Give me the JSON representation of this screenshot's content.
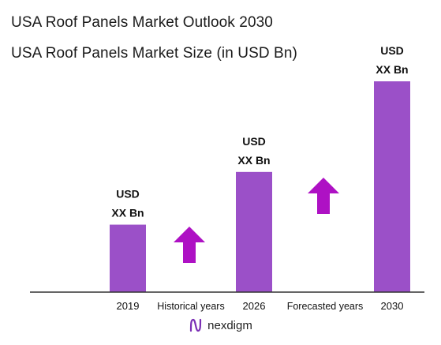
{
  "header": {
    "title": "USA Roof Panels Market Outlook 2030",
    "subtitle": "USA Roof Panels Market Size (in USD Bn)"
  },
  "colors": {
    "bar": "#9b50c8",
    "arrow": "#ae11c4",
    "axis": "#333333"
  },
  "chart_data": {
    "type": "bar",
    "categories": [
      "2019",
      "2026",
      "2030"
    ],
    "values": [
      32,
      57,
      100
    ],
    "value_unit": "relative bar height (values shown as XX, not disclosed)",
    "data_labels": [
      [
        "USD",
        "XX Bn"
      ],
      [
        "USD",
        "XX Bn"
      ],
      [
        "USD",
        "XX Bn"
      ]
    ],
    "period_labels": [
      "Historical years",
      "Forecasted years"
    ],
    "growth_arrows": 2,
    "title": "USA Roof Panels Market Size (in USD Bn)",
    "xlabel": "",
    "ylabel": "",
    "ylim": [
      0,
      100
    ],
    "grid": false,
    "legend": "none"
  },
  "footer": {
    "brand": "nexdigm",
    "logo_icon": "nexdigm-logo-icon"
  }
}
